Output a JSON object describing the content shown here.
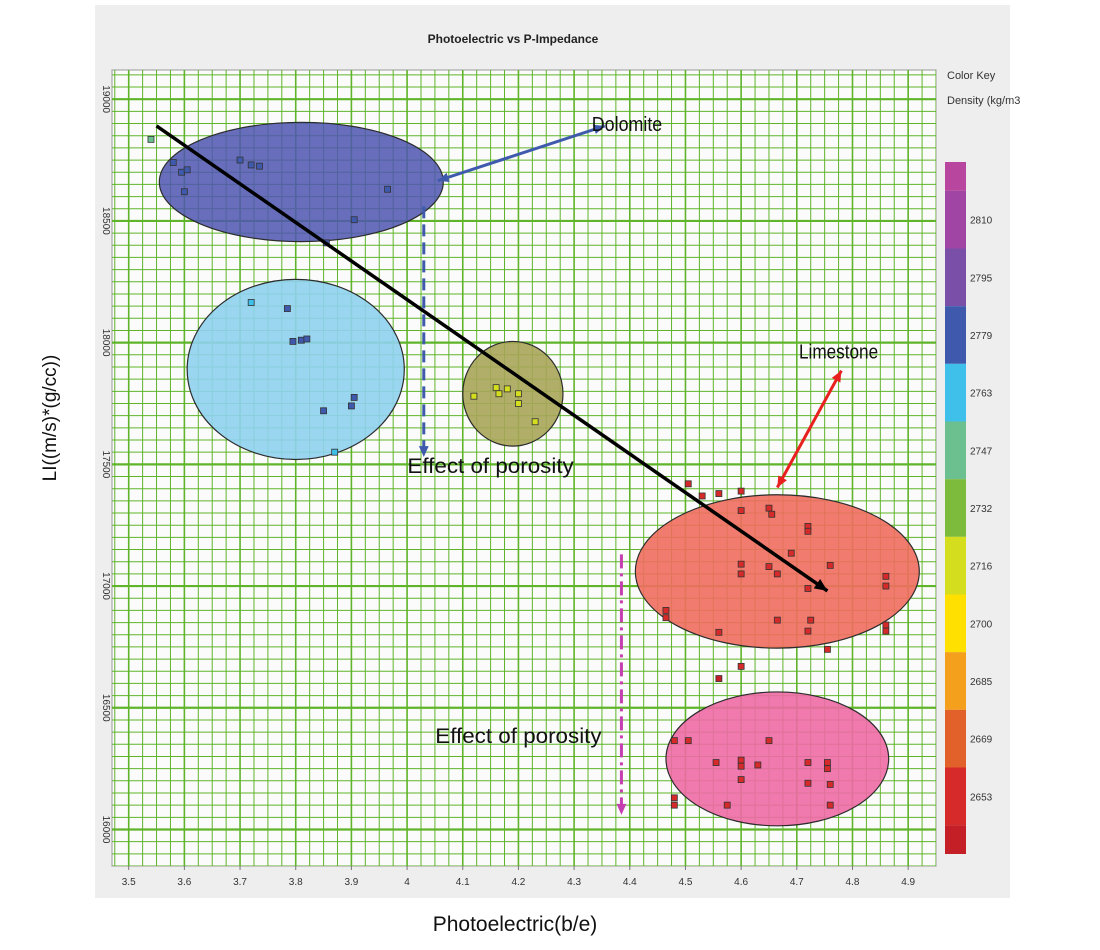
{
  "chart_data": {
    "type": "scatter",
    "title": "Photoelectric vs P-Impedance",
    "xlabel": "Photoelectric(b/e)",
    "ylabel": "LI((m/s)*(g/cc))",
    "xlim": [
      3.47,
      4.95
    ],
    "ylim": [
      15850,
      19120
    ],
    "x_ticks": [
      "3.5",
      "3.6",
      "3.7",
      "3.8",
      "3.9",
      "4",
      "4.1",
      "4.2",
      "4.3",
      "4.4",
      "4.5",
      "4.6",
      "4.7",
      "4.8",
      "4.9"
    ],
    "y_ticks": [
      "16000",
      "16500",
      "17000",
      "17500",
      "18000",
      "18500",
      "19000"
    ],
    "grid": true,
    "legend": {
      "placement": "right",
      "title": "Color Key",
      "subtitle": "Density (kg/m3",
      "entries": [
        {
          "label": "2810",
          "color": "#a045a4"
        },
        {
          "label": "2795",
          "color": "#7a4fa8"
        },
        {
          "label": "2779",
          "color": "#3f5aad"
        },
        {
          "label": "2763",
          "color": "#3fc0ea"
        },
        {
          "label": "2747",
          "color": "#6cc090"
        },
        {
          "label": "2732",
          "color": "#7dbb3c"
        },
        {
          "label": "2716",
          "color": "#d5dd1f"
        },
        {
          "label": "2700",
          "color": "#ffe000"
        },
        {
          "label": "2685",
          "color": "#f5a01c"
        },
        {
          "label": "2669",
          "color": "#e2602a"
        },
        {
          "label": "2653",
          "color": "#d62a2a"
        }
      ],
      "top_color": "#b8469f",
      "bottom_color": "#c41e26"
    },
    "ellipses": [
      {
        "name": "dolomite",
        "cx": 3.81,
        "cy": 18660,
        "rx": 0.255,
        "ry": 245,
        "fill": "#4d55b0",
        "opacity": 0.85
      },
      {
        "name": "cyan",
        "cx": 3.8,
        "cy": 17890,
        "rx": 0.195,
        "ry": 370,
        "fill": "#8fd2ee",
        "opacity": 0.9
      },
      {
        "name": "olive",
        "cx": 4.19,
        "cy": 17790,
        "rx": 0.09,
        "ry": 215,
        "fill": "#a7a558",
        "opacity": 0.9
      },
      {
        "name": "limestone",
        "cx": 4.665,
        "cy": 17060,
        "rx": 0.255,
        "ry": 315,
        "fill": "#ef6d5e",
        "opacity": 0.9
      },
      {
        "name": "pink",
        "cx": 4.665,
        "cy": 16290,
        "rx": 0.2,
        "ry": 275,
        "fill": "#ee6aa5",
        "opacity": 0.9
      }
    ],
    "points": [
      {
        "x": 3.54,
        "y": 18835,
        "color": "#6cc090"
      },
      {
        "x": 3.58,
        "y": 18740,
        "color": "#3f5aad"
      },
      {
        "x": 3.595,
        "y": 18700,
        "color": "#3f5aad"
      },
      {
        "x": 3.605,
        "y": 18710,
        "color": "#3f5aad"
      },
      {
        "x": 3.6,
        "y": 18620,
        "color": "#3f5aad"
      },
      {
        "x": 3.7,
        "y": 18750,
        "color": "#3f5aad"
      },
      {
        "x": 3.72,
        "y": 18730,
        "color": "#3f5aad"
      },
      {
        "x": 3.735,
        "y": 18725,
        "color": "#3f5aad"
      },
      {
        "x": 3.965,
        "y": 18630,
        "color": "#3f5aad"
      },
      {
        "x": 3.905,
        "y": 18505,
        "color": "#3f5aad"
      },
      {
        "x": 3.855,
        "y": 18410,
        "color": "#3f5aad"
      },
      {
        "x": 3.72,
        "y": 18165,
        "color": "#3fc0ea"
      },
      {
        "x": 3.785,
        "y": 18140,
        "color": "#3f5aad"
      },
      {
        "x": 3.795,
        "y": 18005,
        "color": "#3f5aad"
      },
      {
        "x": 3.81,
        "y": 18010,
        "color": "#3f5aad"
      },
      {
        "x": 3.82,
        "y": 18015,
        "color": "#3f5aad"
      },
      {
        "x": 3.905,
        "y": 17775,
        "color": "#3f5aad"
      },
      {
        "x": 3.9,
        "y": 17740,
        "color": "#3f5aad"
      },
      {
        "x": 3.85,
        "y": 17720,
        "color": "#3f5aad"
      },
      {
        "x": 3.87,
        "y": 17550,
        "color": "#3fc0ea"
      },
      {
        "x": 4.12,
        "y": 17780,
        "color": "#d5dd1f"
      },
      {
        "x": 4.16,
        "y": 17815,
        "color": "#d5dd1f"
      },
      {
        "x": 4.165,
        "y": 17790,
        "color": "#d5dd1f"
      },
      {
        "x": 4.18,
        "y": 17810,
        "color": "#d5dd1f"
      },
      {
        "x": 4.2,
        "y": 17790,
        "color": "#d5dd1f"
      },
      {
        "x": 4.2,
        "y": 17750,
        "color": "#d5dd1f"
      },
      {
        "x": 4.23,
        "y": 17675,
        "color": "#d5dd1f"
      },
      {
        "x": 4.505,
        "y": 17420,
        "color": "#d62a2a"
      },
      {
        "x": 4.53,
        "y": 17370,
        "color": "#d62a2a"
      },
      {
        "x": 4.56,
        "y": 17380,
        "color": "#d62a2a"
      },
      {
        "x": 4.6,
        "y": 17390,
        "color": "#d62a2a"
      },
      {
        "x": 4.6,
        "y": 17310,
        "color": "#d62a2a"
      },
      {
        "x": 4.65,
        "y": 17320,
        "color": "#d62a2a"
      },
      {
        "x": 4.655,
        "y": 17295,
        "color": "#d62a2a"
      },
      {
        "x": 4.72,
        "y": 17245,
        "color": "#d62a2a"
      },
      {
        "x": 4.72,
        "y": 17225,
        "color": "#d62a2a"
      },
      {
        "x": 4.69,
        "y": 17135,
        "color": "#d62a2a"
      },
      {
        "x": 4.6,
        "y": 17090,
        "color": "#d62a2a"
      },
      {
        "x": 4.6,
        "y": 17050,
        "color": "#d62a2a"
      },
      {
        "x": 4.65,
        "y": 17080,
        "color": "#d62a2a"
      },
      {
        "x": 4.665,
        "y": 17050,
        "color": "#d62a2a"
      },
      {
        "x": 4.76,
        "y": 17085,
        "color": "#d62a2a"
      },
      {
        "x": 4.72,
        "y": 16990,
        "color": "#d62a2a"
      },
      {
        "x": 4.86,
        "y": 17040,
        "color": "#d62a2a"
      },
      {
        "x": 4.86,
        "y": 17000,
        "color": "#d62a2a"
      },
      {
        "x": 4.465,
        "y": 16900,
        "color": "#d62a2a"
      },
      {
        "x": 4.465,
        "y": 16870,
        "color": "#d62a2a"
      },
      {
        "x": 4.56,
        "y": 16810,
        "color": "#d62a2a"
      },
      {
        "x": 4.665,
        "y": 16860,
        "color": "#d62a2a"
      },
      {
        "x": 4.72,
        "y": 16815,
        "color": "#d62a2a"
      },
      {
        "x": 4.755,
        "y": 16740,
        "color": "#d62a2a"
      },
      {
        "x": 4.725,
        "y": 16860,
        "color": "#d62a2a"
      },
      {
        "x": 4.86,
        "y": 16840,
        "color": "#d62a2a"
      },
      {
        "x": 4.86,
        "y": 16815,
        "color": "#d62a2a"
      },
      {
        "x": 4.6,
        "y": 16670,
        "color": "#d62a2a"
      },
      {
        "x": 4.56,
        "y": 16620,
        "color": "#c41e26"
      },
      {
        "x": 4.48,
        "y": 16365,
        "color": "#d62a2a"
      },
      {
        "x": 4.505,
        "y": 16365,
        "color": "#d62a2a"
      },
      {
        "x": 4.65,
        "y": 16365,
        "color": "#d62a2a"
      },
      {
        "x": 4.555,
        "y": 16275,
        "color": "#d62a2a"
      },
      {
        "x": 4.6,
        "y": 16285,
        "color": "#d62a2a"
      },
      {
        "x": 4.6,
        "y": 16260,
        "color": "#d62a2a"
      },
      {
        "x": 4.63,
        "y": 16265,
        "color": "#d62a2a"
      },
      {
        "x": 4.6,
        "y": 16205,
        "color": "#d62a2a"
      },
      {
        "x": 4.72,
        "y": 16275,
        "color": "#d62a2a"
      },
      {
        "x": 4.755,
        "y": 16275,
        "color": "#d62a2a"
      },
      {
        "x": 4.755,
        "y": 16250,
        "color": "#d62a2a"
      },
      {
        "x": 4.72,
        "y": 16190,
        "color": "#d62a2a"
      },
      {
        "x": 4.76,
        "y": 16185,
        "color": "#d62a2a"
      },
      {
        "x": 4.48,
        "y": 16130,
        "color": "#d62a2a"
      },
      {
        "x": 4.48,
        "y": 16100,
        "color": "#d62a2a"
      },
      {
        "x": 4.575,
        "y": 16100,
        "color": "#d62a2a"
      },
      {
        "x": 4.76,
        "y": 16100,
        "color": "#d62a2a"
      }
    ],
    "annotations": [
      {
        "text": "Dolomite",
        "x": 4.395,
        "y": 18870,
        "color": "#111111",
        "size": 20
      },
      {
        "text": "Limestone",
        "x": 4.775,
        "y": 17935,
        "color": "#111111",
        "size": 20
      },
      {
        "text": "Effect of porosity",
        "x": 4.15,
        "y": 17465,
        "color": "#111111",
        "size": 21
      },
      {
        "text": "Effect of porosity",
        "x": 4.2,
        "y": 16355,
        "color": "#111111",
        "size": 21
      }
    ],
    "trend_line": {
      "x1": 3.55,
      "y1": 18890,
      "x2": 4.755,
      "y2": 16980,
      "color": "#000000"
    },
    "arrows": [
      {
        "name": "dolomite-arrow",
        "x1": 4.055,
        "y1": 18665,
        "x2": 4.355,
        "y2": 18890,
        "color": "#3f5aad",
        "double": true,
        "dash": false
      },
      {
        "name": "limestone-arrow",
        "x1": 4.665,
        "y1": 17405,
        "x2": 4.78,
        "y2": 17885,
        "color": "#e82020",
        "double": true,
        "dash": false
      },
      {
        "name": "porosity-arrow-1",
        "x1": 4.03,
        "y1": 18560,
        "x2": 4.03,
        "y2": 17530,
        "color": "#3f5aad",
        "double": false,
        "dash": true
      },
      {
        "name": "porosity-arrow-2",
        "x1": 4.385,
        "y1": 17130,
        "x2": 4.385,
        "y2": 16060,
        "color": "#c43fb0",
        "double": false,
        "dash": true
      }
    ]
  }
}
